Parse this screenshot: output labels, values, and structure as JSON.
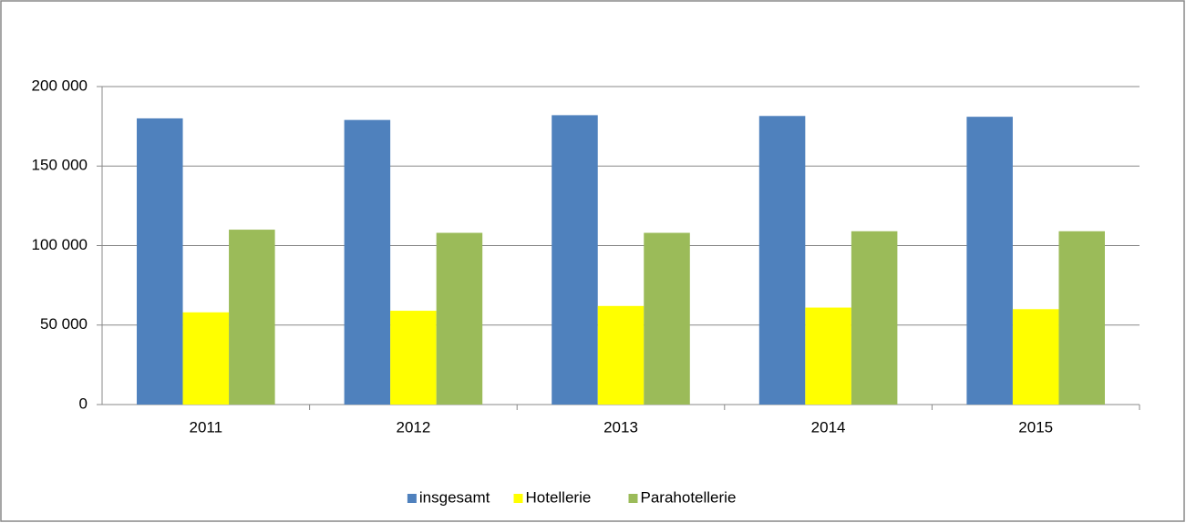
{
  "chart_data": {
    "type": "bar",
    "categories": [
      "2011",
      "2012",
      "2013",
      "2014",
      "2015"
    ],
    "series": [
      {
        "name": "insgesamt",
        "color": "#4f81bd",
        "values": [
          180000,
          179000,
          182000,
          181500,
          181000
        ]
      },
      {
        "name": "Hotellerie",
        "color": "#ffff00",
        "values": [
          58000,
          59000,
          62000,
          61000,
          60000
        ]
      },
      {
        "name": "Parahotellerie",
        "color": "#9bbb59",
        "values": [
          110000,
          108000,
          108000,
          109000,
          109000
        ]
      }
    ],
    "ylim": [
      0,
      200000
    ],
    "yticks": [
      0,
      {
        "value": 50000,
        "label": "50 000"
      },
      {
        "value": 100000,
        "label": "100 000"
      },
      {
        "value": 150000,
        "label": "150 000"
      },
      {
        "value": 200000,
        "label": "200 000"
      }
    ],
    "grid": true,
    "legend": "bottom"
  }
}
